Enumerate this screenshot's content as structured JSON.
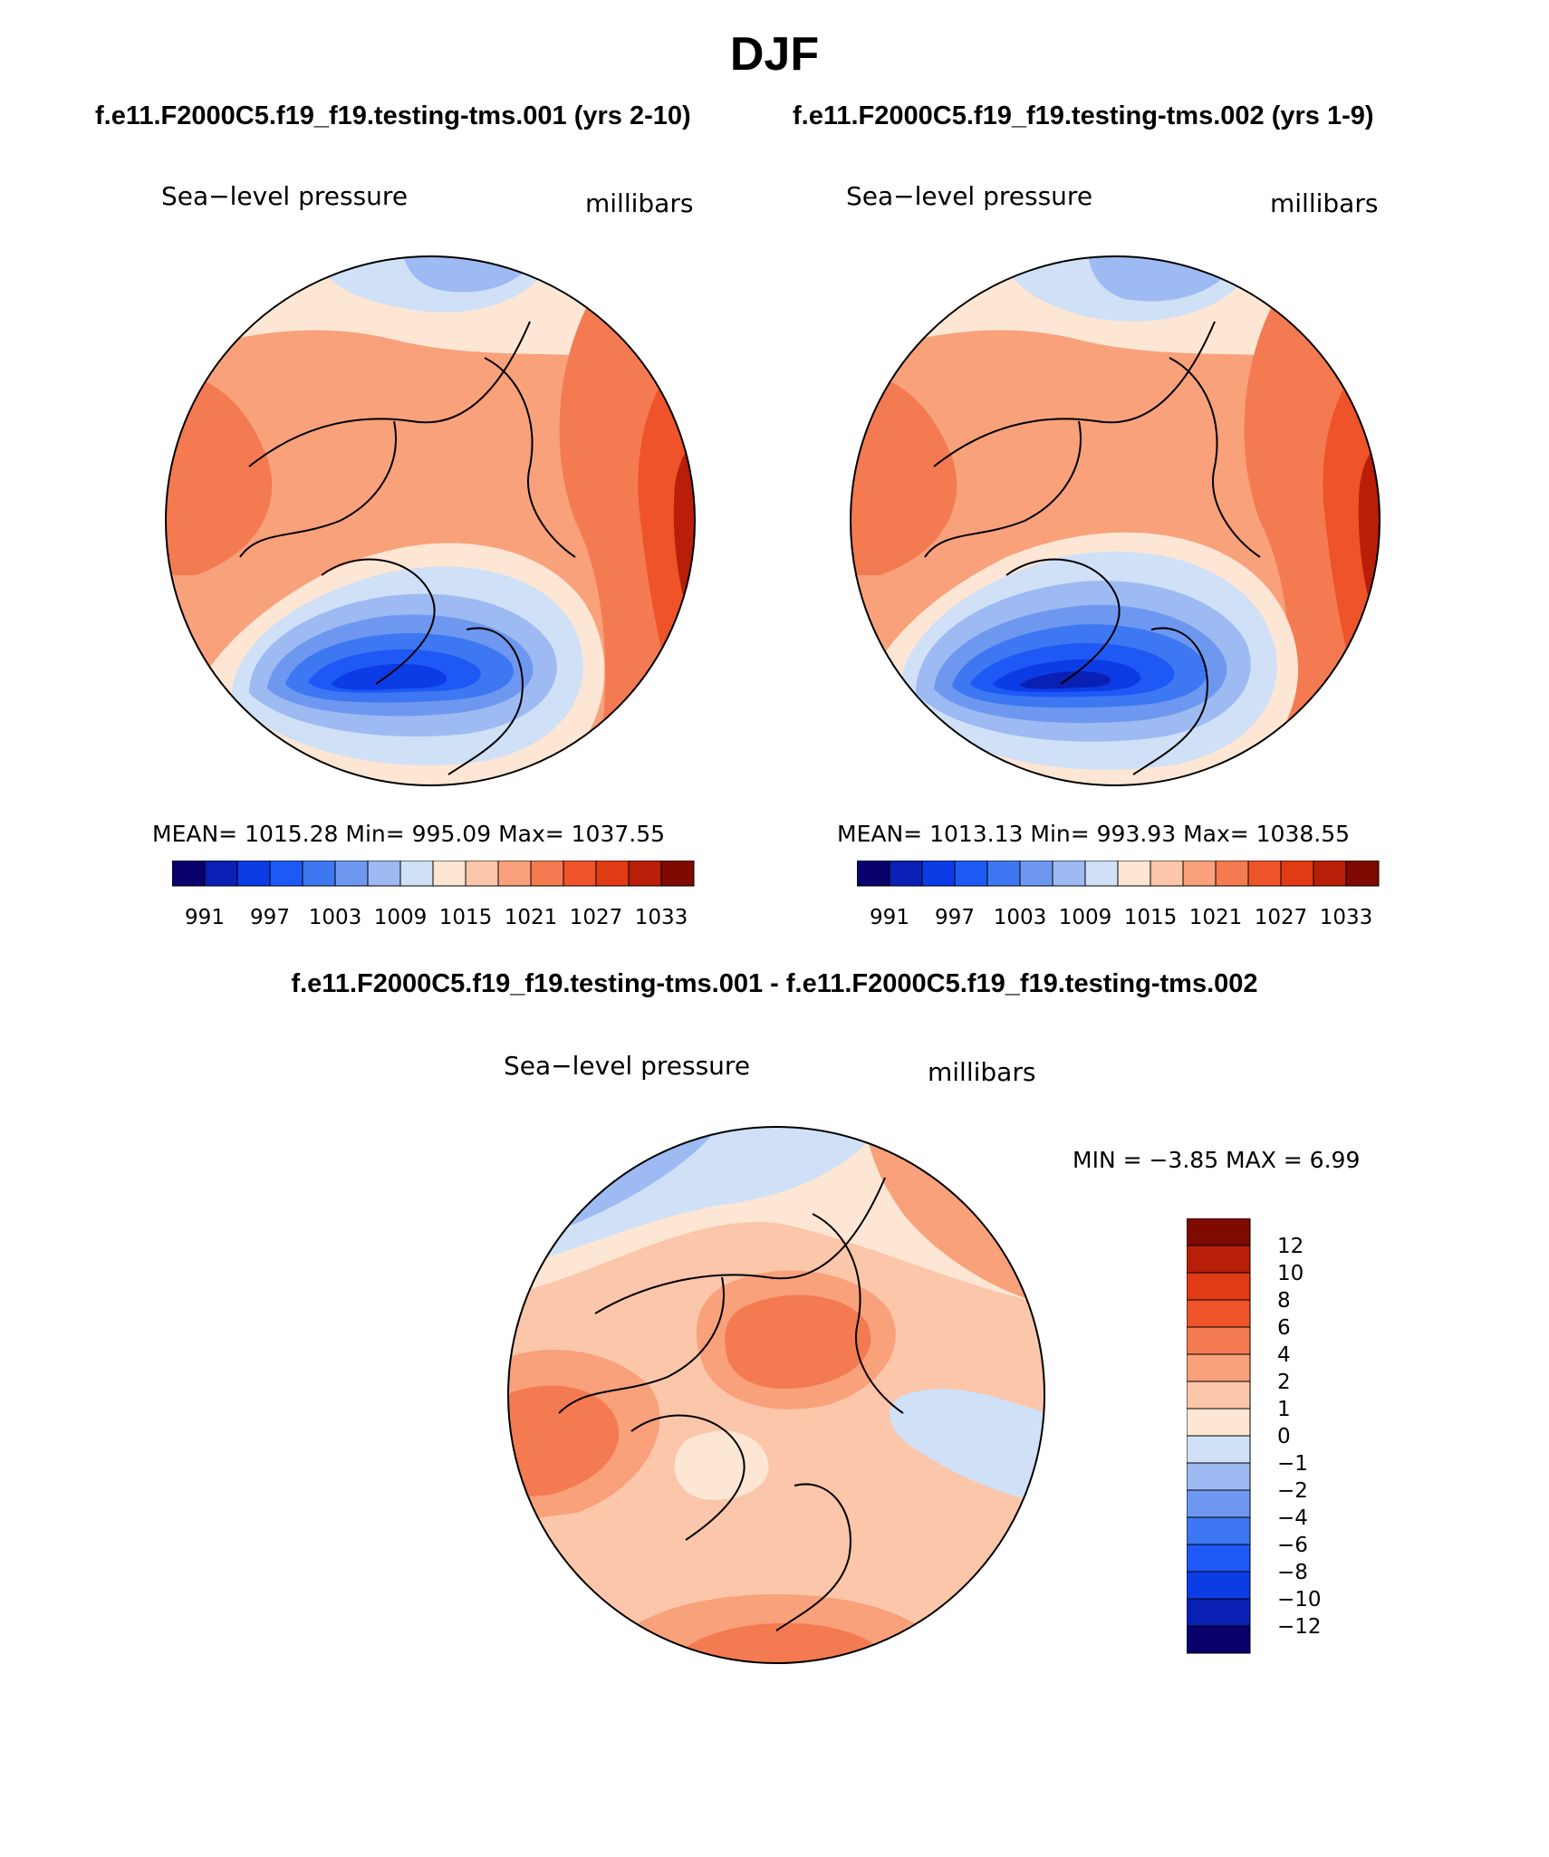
{
  "title": "DJF",
  "case_titles": [
    "f.e11.F2000C5.f19_f19.testing-tms.001 (yrs 2-10)",
    "f.e11.F2000C5.f19_f19.testing-tms.002 (yrs 1-9)"
  ],
  "diff_title": "f.e11.F2000C5.f19_f19.testing-tms.001 - f.e11.F2000C5.f19_f19.testing-tms.002",
  "panels": [
    {
      "variable": "Sea−level pressure",
      "units": "millibars",
      "stats": "MEAN= 1015.28   Min= 995.09   Max= 1037.55",
      "mean": 1015.28,
      "min": 995.09,
      "max": 1037.55
    },
    {
      "variable": "Sea−level pressure",
      "units": "millibars",
      "stats": "MEAN= 1013.13   Min= 993.93   Max= 1038.55",
      "mean": 1013.13,
      "min": 993.93,
      "max": 1038.55
    }
  ],
  "diff_panel": {
    "variable": "Sea−level pressure",
    "units": "millibars",
    "stats": "MIN =   −3.85  MAX =     6.99",
    "min": -3.85,
    "max": 6.99
  },
  "abs_colorbar": {
    "labels": [
      "991",
      "997",
      "1003",
      "1009",
      "1015",
      "1021",
      "1027",
      "1033"
    ],
    "levels": [
      991,
      994,
      997,
      1000,
      1003,
      1006,
      1009,
      1012,
      1015,
      1018,
      1021,
      1024,
      1027,
      1030,
      1033
    ],
    "colors": [
      "#08006b",
      "#0a1fb4",
      "#0b3ce6",
      "#1e59f5",
      "#3d78f2",
      "#6e98f0",
      "#9dbaf2",
      "#cfe0f7",
      "#fde6d4",
      "#fbc6a9",
      "#f8a17b",
      "#f47a51",
      "#ee5329",
      "#e03b14",
      "#b81e08",
      "#7e0a00"
    ]
  },
  "diff_colorbar": {
    "labels": [
      "12",
      "10",
      "8",
      "6",
      "4",
      "2",
      "1",
      "0",
      "−1",
      "−2",
      "−4",
      "−6",
      "−8",
      "−10",
      "−12"
    ],
    "levels": [
      12,
      10,
      8,
      6,
      4,
      2,
      1,
      0,
      -1,
      -2,
      -4,
      -6,
      -8,
      -10,
      -12
    ],
    "colors": [
      "#7e0a00",
      "#b81e08",
      "#e03b14",
      "#ee5329",
      "#f47a51",
      "#f8a17b",
      "#fbc6a9",
      "#fde6d4",
      "#cfe0f7",
      "#9dbaf2",
      "#6e98f0",
      "#3d78f2",
      "#1e59f5",
      "#0b3ce6",
      "#0a1fb4",
      "#08006b"
    ]
  },
  "chart_data": [
    {
      "type": "heatmap",
      "title": "Sea−level pressure (f.e11.F2000C5.f19_f19.testing-tms.001, yrs 2-10)",
      "units": "millibars",
      "projection": "north polar stereographic",
      "mean": 1015.28,
      "min": 995.09,
      "max": 1037.55,
      "levels": [
        991,
        994,
        997,
        1000,
        1003,
        1006,
        1009,
        1012,
        1015,
        1018,
        1021,
        1024,
        1027,
        1030,
        1033
      ]
    },
    {
      "type": "heatmap",
      "title": "Sea−level pressure (f.e11.F2000C5.f19_f19.testing-tms.002, yrs 1-9)",
      "units": "millibars",
      "projection": "north polar stereographic",
      "mean": 1013.13,
      "min": 993.93,
      "max": 1038.55,
      "levels": [
        991,
        994,
        997,
        1000,
        1003,
        1006,
        1009,
        1012,
        1015,
        1018,
        1021,
        1024,
        1027,
        1030,
        1033
      ]
    },
    {
      "type": "heatmap",
      "title": "Sea−level pressure difference (001 - 002)",
      "units": "millibars",
      "projection": "north polar stereographic",
      "min": -3.85,
      "max": 6.99,
      "levels": [
        -12,
        -10,
        -8,
        -6,
        -4,
        -2,
        -1,
        0,
        1,
        2,
        4,
        6,
        8,
        10,
        12
      ]
    }
  ]
}
